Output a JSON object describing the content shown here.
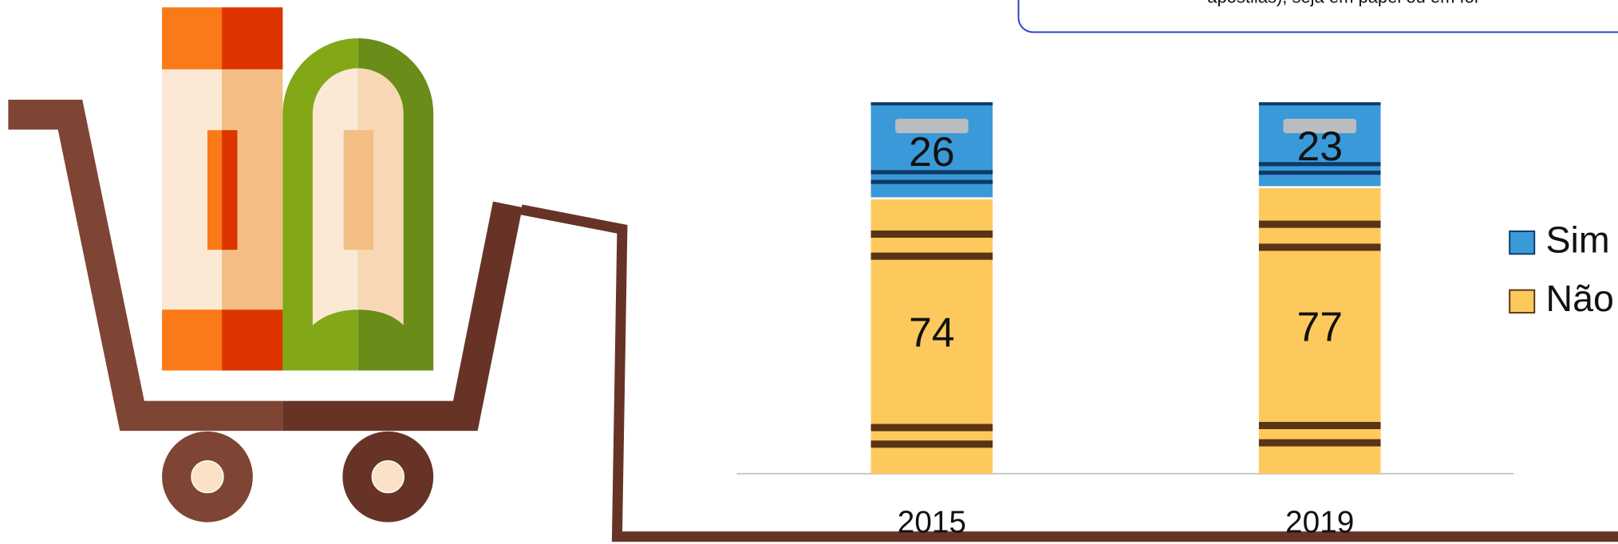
{
  "note": "apostilas), seja em papel ou em for",
  "chart_data": {
    "type": "bar",
    "stacked": true,
    "categories": [
      "2015",
      "2019"
    ],
    "series": [
      {
        "name": "Não",
        "color": "#fdc95c",
        "values": [
          74,
          77
        ]
      },
      {
        "name": "Sim",
        "color": "#3a9ad9",
        "values": [
          26,
          23
        ]
      }
    ]
  }
}
